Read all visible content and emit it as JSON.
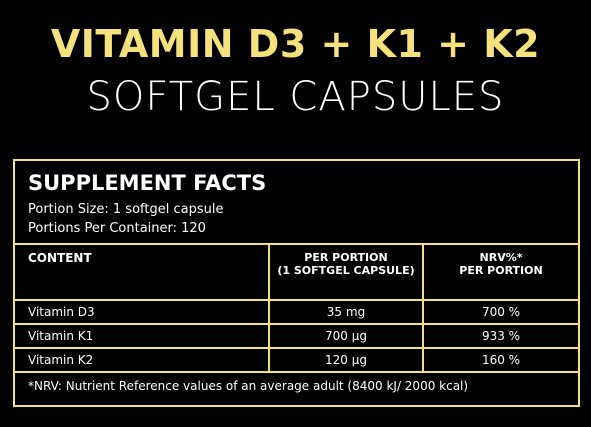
{
  "header": {
    "title": "VITAMIN D3 + K1 + K2",
    "subtitle": "SOFTGEL CAPSULES"
  },
  "facts": {
    "title": "SUPPLEMENT FACTS",
    "portion_size": "Portion Size: 1 softgel capsule",
    "portions_per_container": "Portions Per Container: 120"
  },
  "table": {
    "columns": [
      [
        "CONTENT"
      ],
      [
        "PER PORTION",
        "(1 SOFTGEL CAPSULE)"
      ],
      [
        "NRV%*",
        "PER PORTION"
      ]
    ],
    "rows": [
      [
        "Vitamin D3",
        "35 mg",
        "700 %"
      ],
      [
        "Vitamin K1",
        "700 µg",
        "933 %"
      ],
      [
        "Vitamin K2",
        "120 µg",
        "160 %"
      ]
    ]
  },
  "footnote": "*NRV: Nutrient Reference values of an average adult (8400 kJ/ 2000 kcal)"
}
